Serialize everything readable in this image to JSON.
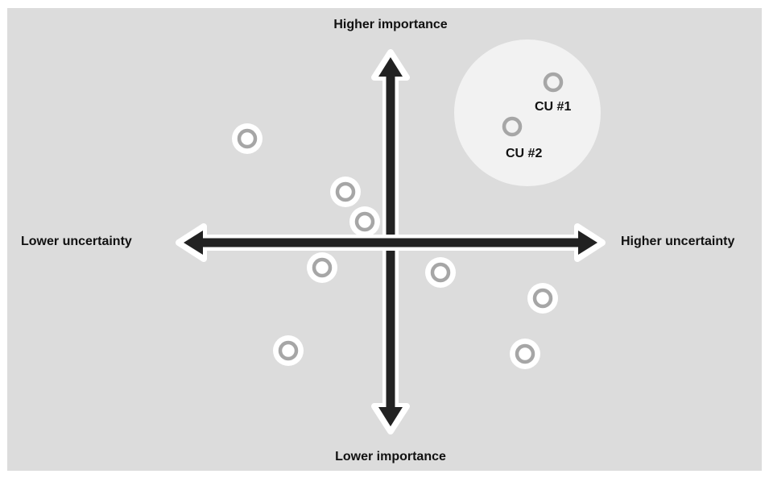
{
  "axes": {
    "top": "Higher importance",
    "bottom": "Lower importance",
    "left": "Lower uncertainty",
    "right": "Higher uncertainty"
  },
  "highlight": {
    "items": [
      {
        "label": "CU #1"
      },
      {
        "label": "CU #2"
      }
    ]
  },
  "colors": {
    "background": "#dcdcdc",
    "arrow": "#222222",
    "arrow_outline": "#ffffff",
    "marker_ring": "#a6a6a6",
    "highlight_fill": "#f2f2f2"
  }
}
